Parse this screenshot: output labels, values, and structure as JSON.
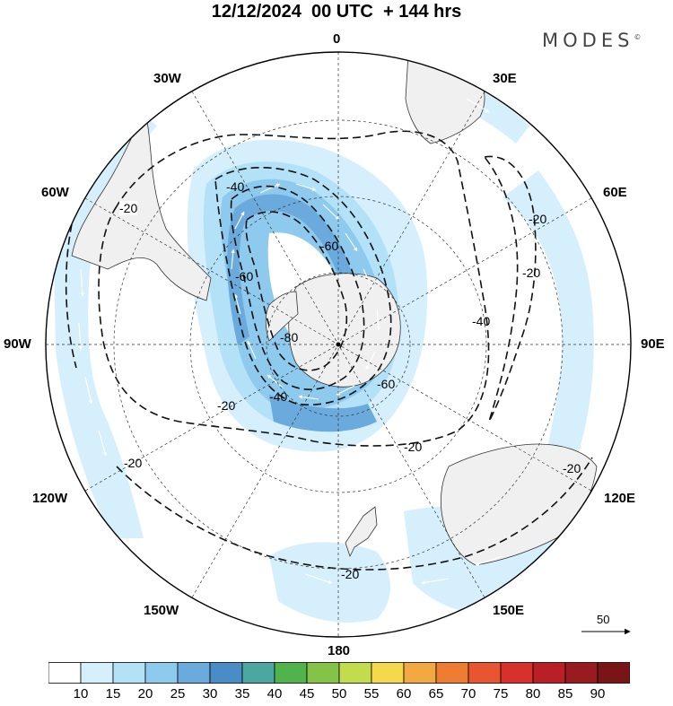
{
  "title": "12/12/2024  00 UTC  + 144 hrs",
  "brand": {
    "name": "MODES",
    "mark": "©"
  },
  "longitude_labels": [
    {
      "id": "lon-0",
      "text": "0"
    },
    {
      "id": "lon-30e",
      "text": "30E"
    },
    {
      "id": "lon-60e",
      "text": "60E"
    },
    {
      "id": "lon-90e",
      "text": "90E"
    },
    {
      "id": "lon-120e",
      "text": "120E"
    },
    {
      "id": "lon-150e",
      "text": "150E"
    },
    {
      "id": "lon-180",
      "text": "180"
    },
    {
      "id": "lon-150w",
      "text": "150W"
    },
    {
      "id": "lon-120w",
      "text": "120W"
    },
    {
      "id": "lon-90w",
      "text": "90W"
    },
    {
      "id": "lon-60w",
      "text": "60W"
    },
    {
      "id": "lon-30w",
      "text": "30W"
    }
  ],
  "contour_labels": [
    {
      "id": "c1",
      "text": "-20"
    },
    {
      "id": "c2",
      "text": "-40"
    },
    {
      "id": "c3",
      "text": "-60"
    },
    {
      "id": "c4",
      "text": "-60"
    },
    {
      "id": "c5",
      "text": "-80"
    },
    {
      "id": "c6",
      "text": "-40"
    },
    {
      "id": "c7",
      "text": "-60"
    },
    {
      "id": "c8",
      "text": "-40"
    },
    {
      "id": "c9",
      "text": "-20"
    },
    {
      "id": "c10",
      "text": "-20"
    },
    {
      "id": "c11",
      "text": "-20"
    },
    {
      "id": "c12",
      "text": "-20"
    },
    {
      "id": "c13",
      "text": "-20"
    },
    {
      "id": "c14",
      "text": "-20"
    },
    {
      "id": "c15",
      "text": "-20"
    }
  ],
  "vector_scale": {
    "value": "50"
  },
  "colorbar": {
    "labels": [
      "10",
      "15",
      "20",
      "25",
      "30",
      "35",
      "40",
      "45",
      "50",
      "55",
      "60",
      "65",
      "70",
      "75",
      "80",
      "85",
      "90"
    ],
    "colors": [
      "#ffffff",
      "#d5f0fc",
      "#b3e1f7",
      "#8ecaee",
      "#6aaadc",
      "#4a8cc6",
      "#4ba7a0",
      "#51b34b",
      "#84c348",
      "#c3dc4e",
      "#f6d94b",
      "#f3a942",
      "#ee7d32",
      "#e85530",
      "#d8302b",
      "#ba1f26",
      "#981b1f",
      "#7a1517"
    ]
  },
  "map_features": {
    "projection": "south-polar-stereographic",
    "landmass_color": "#f0f0f0",
    "shading_scale_min": 10,
    "coast_features": [
      "south-america",
      "africa",
      "antarctica",
      "australia",
      "new-zealand"
    ]
  }
}
